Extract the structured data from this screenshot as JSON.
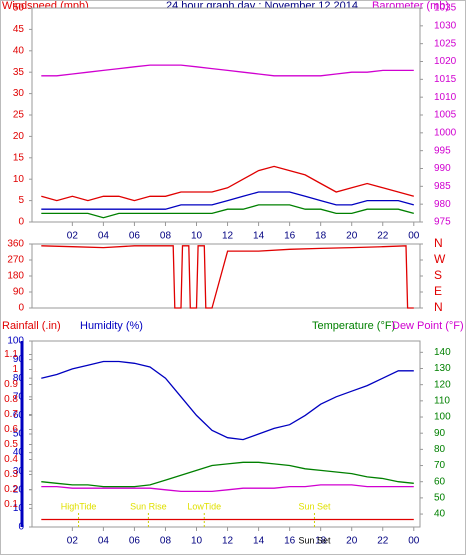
{
  "chart_data": [
    {
      "type": "line",
      "title": "24 hour graph day : November 12 2014",
      "y_label": "Windspeed (mph)",
      "y2_label": "Barometer (mb)",
      "xlim": [
        -0.6,
        24.4
      ],
      "xticks": [
        {
          "value": 2,
          "label": "02"
        },
        {
          "value": 4,
          "label": "04"
        },
        {
          "value": 6,
          "label": "06"
        },
        {
          "value": 8,
          "label": "08"
        },
        10,
        12,
        14,
        16,
        18,
        20,
        22,
        {
          "value": 24,
          "label": "00"
        }
      ],
      "ylim": [
        0,
        50
      ],
      "yticks": [
        0,
        5,
        10,
        15,
        20,
        25,
        30,
        35,
        40,
        45,
        50
      ],
      "ytick_color": "#e00000",
      "y2lim": [
        975,
        1035
      ],
      "y2ticks": [
        975,
        980,
        985,
        990,
        995,
        1000,
        1005,
        1010,
        1015,
        1020,
        1025,
        1030,
        1035
      ],
      "y2tick_color": "#d000d0",
      "x": [
        0,
        1,
        2,
        3,
        4,
        5,
        6,
        7,
        8,
        9,
        10,
        11,
        12,
        13,
        14,
        15,
        16,
        17,
        18,
        19,
        20,
        21,
        22,
        23,
        24
      ],
      "series": [
        {
          "color": "#e00000",
          "values": [
            6,
            5,
            6,
            5,
            6,
            6,
            5,
            6,
            6,
            7,
            7,
            7,
            8,
            10,
            12,
            13,
            12,
            11,
            9,
            7,
            8,
            9,
            8,
            7,
            6
          ]
        },
        {
          "color": "#008000",
          "values": [
            2,
            2,
            2,
            2,
            1,
            2,
            2,
            2,
            2,
            2,
            2,
            2,
            3,
            3,
            4,
            4,
            4,
            3,
            3,
            2,
            2,
            3,
            3,
            3,
            2
          ]
        },
        {
          "color": "#0000c0",
          "values": [
            3,
            3,
            3,
            3,
            3,
            3,
            3,
            3,
            3,
            4,
            4,
            4,
            5,
            6,
            7,
            7,
            7,
            6,
            5,
            4,
            4,
            5,
            5,
            5,
            4
          ]
        },
        {
          "color": "#d000d0",
          "axis": "y2",
          "values": [
            1016,
            1016,
            1016.5,
            1017,
            1017.5,
            1018,
            1018.5,
            1019,
            1019,
            1019,
            1018.5,
            1018,
            1017.5,
            1017,
            1016.5,
            1016,
            1016,
            1016,
            1016,
            1016.5,
            1017,
            1017,
            1017.5,
            1017.5,
            1017.5
          ]
        }
      ]
    },
    {
      "type": "line",
      "xlim": [
        -0.6,
        24.4
      ],
      "ylim": [
        0,
        360
      ],
      "yticks": [
        0,
        90,
        180,
        270,
        360
      ],
      "ytick_color": "#e00000",
      "y2lim": [
        0,
        360
      ],
      "y2ticks": [
        {
          "value": 0,
          "label": "N"
        },
        {
          "value": 90,
          "label": "E"
        },
        {
          "value": 180,
          "label": "S"
        },
        {
          "value": 270,
          "label": "W"
        },
        {
          "value": 360,
          "label": "N"
        }
      ],
      "y2tick_color": "#e00000",
      "x": [
        0,
        2,
        4,
        6,
        8,
        8.5,
        8.6,
        9,
        9.1,
        9.5,
        9.6,
        10,
        10.1,
        10.5,
        10.6,
        11,
        12,
        14,
        16,
        18,
        20,
        22,
        23.5,
        23.6,
        24
      ],
      "series": [
        {
          "color": "#e00000",
          "values": [
            350,
            345,
            340,
            350,
            350,
            350,
            0,
            0,
            350,
            350,
            0,
            0,
            350,
            350,
            0,
            0,
            320,
            320,
            330,
            335,
            340,
            345,
            350,
            0,
            0
          ]
        }
      ]
    },
    {
      "type": "line",
      "y3_label": "Rainfall (.in)",
      "y_label": "Humidity (%)",
      "y2_label": "Temperature (°F)",
      "y2b_label": "Dew Point (°F)",
      "xlim": [
        -0.6,
        24.4
      ],
      "xticks": [
        {
          "value": 2,
          "label": "02"
        },
        {
          "value": 4,
          "label": "04"
        },
        {
          "value": 6,
          "label": "06"
        },
        {
          "value": 8,
          "label": "08"
        },
        10,
        12,
        14,
        16,
        18,
        20,
        22,
        {
          "value": 24,
          "label": "00"
        }
      ],
      "ylim": [
        0,
        100
      ],
      "yticks": [
        0,
        10,
        20,
        30,
        40,
        50,
        60,
        70,
        80,
        90,
        100
      ],
      "ytick_color": "#0000c0",
      "y2lim": [
        32,
        147
      ],
      "y2ticks": [
        40,
        50,
        60,
        70,
        80,
        90,
        100,
        110,
        120,
        130,
        140
      ],
      "y2tick_color": "#008000",
      "y3lim": [
        -0.05,
        1.19
      ],
      "y3ticks": [
        0.1,
        0.2,
        0.3,
        0.4,
        0.5,
        0.6,
        0.7,
        0.8,
        0.9,
        1,
        1.1
      ],
      "y3tick_color": "#e00000",
      "x": [
        0,
        1,
        2,
        3,
        4,
        5,
        6,
        7,
        8,
        9,
        10,
        11,
        12,
        13,
        14,
        15,
        16,
        17,
        18,
        19,
        20,
        21,
        22,
        23,
        24
      ],
      "series": [
        {
          "color": "#e00000",
          "axis": "y3",
          "values": [
            0,
            0,
            0,
            0,
            0,
            0,
            0,
            0,
            0,
            0,
            0,
            0,
            0,
            0,
            0,
            0,
            0,
            0,
            0,
            0,
            0,
            0,
            0,
            0,
            0
          ]
        },
        {
          "color": "#0000c0",
          "values": [
            80,
            82,
            85,
            87,
            89,
            89,
            88,
            86,
            80,
            70,
            60,
            52,
            48,
            47,
            50,
            53,
            55,
            60,
            66,
            70,
            73,
            76,
            80,
            84,
            84
          ]
        },
        {
          "color": "#008000",
          "axis": "y2",
          "values": [
            60,
            59,
            58,
            58,
            57,
            57,
            57,
            58,
            61,
            64,
            67,
            70,
            71,
            72,
            72,
            71,
            70,
            68,
            67,
            66,
            65,
            63,
            62,
            60,
            59
          ]
        },
        {
          "color": "#d000d0",
          "axis": "y2",
          "values": [
            57,
            57,
            56,
            56,
            56,
            56,
            56,
            56,
            55,
            54,
            54,
            54,
            55,
            56,
            56,
            56,
            57,
            57,
            58,
            58,
            58,
            57,
            57,
            57,
            57
          ]
        }
      ],
      "annotations": [
        {
          "text": "HighTide",
          "x": 2.4
        },
        {
          "text": "Sun Rise",
          "x": 6.9
        },
        {
          "text": "LowTide",
          "x": 10.5
        },
        {
          "text": "Sun Set",
          "x": 17.6
        }
      ],
      "x_note": {
        "text": "Sun Set",
        "x": 17.6
      }
    }
  ]
}
